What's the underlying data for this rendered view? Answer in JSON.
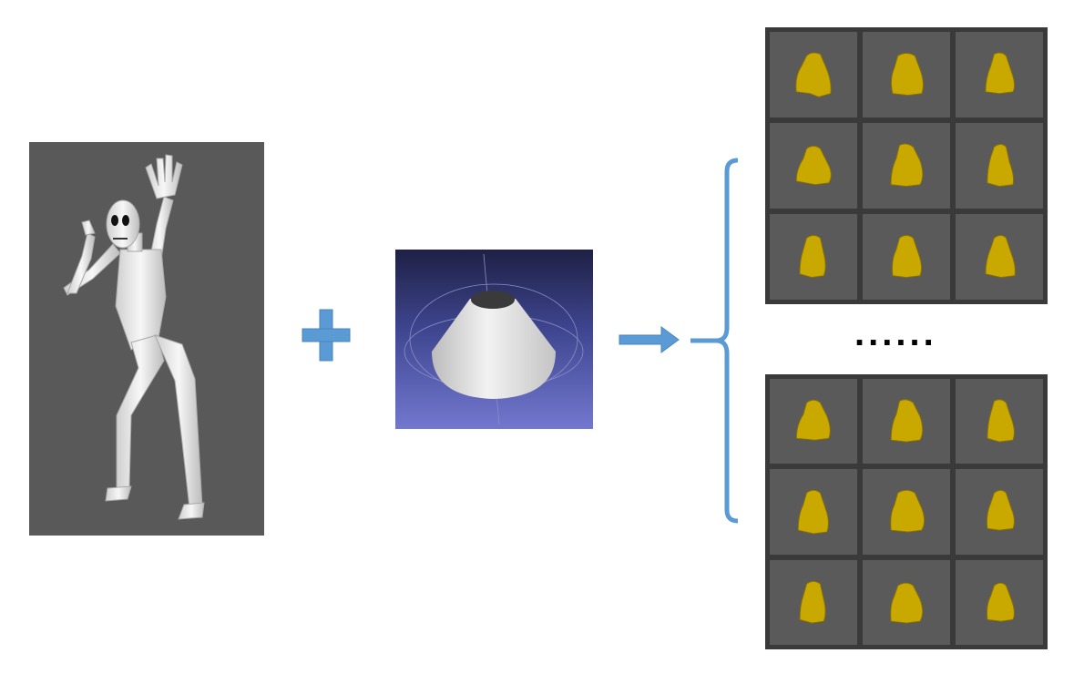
{
  "colors": {
    "accent": "#5b9bd5",
    "panel_gray": "#595959",
    "grid_border": "#3a3a3a",
    "cell_gray": "#5a5a5a",
    "cloth": "#c9a800"
  },
  "icons": {
    "plus": "plus-icon",
    "arrow": "arrow-right-icon",
    "bracket": "bracket-left-icon"
  },
  "separator_text": "......"
}
